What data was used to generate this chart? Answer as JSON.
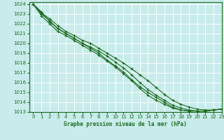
{
  "title": "Graphe pression niveau de la mer (hPa)",
  "bg_color": "#c8ecec",
  "grid_color": "#ffffff",
  "line_color": "#1a6b1a",
  "xlim": [
    -0.5,
    23
  ],
  "ylim": [
    1013,
    1024.2
  ],
  "xticks": [
    0,
    1,
    2,
    3,
    4,
    5,
    6,
    7,
    8,
    9,
    10,
    11,
    12,
    13,
    14,
    15,
    16,
    17,
    18,
    19,
    20,
    21,
    22,
    23
  ],
  "yticks": [
    1013,
    1014,
    1015,
    1016,
    1017,
    1018,
    1019,
    1020,
    1021,
    1022,
    1023,
    1024
  ],
  "series": [
    [
      1024.0,
      1023.1,
      1022.5,
      1021.8,
      1021.2,
      1020.8,
      1020.3,
      1020.0,
      1019.5,
      1019.0,
      1018.5,
      1018.0,
      1017.4,
      1016.8,
      1016.2,
      1015.5,
      1014.8,
      1014.2,
      1013.8,
      1013.5,
      1013.3,
      1013.2,
      1013.2,
      1013.3
    ],
    [
      1024.0,
      1023.0,
      1022.3,
      1021.5,
      1021.0,
      1020.5,
      1020.0,
      1019.5,
      1019.0,
      1018.3,
      1017.7,
      1017.1,
      1016.3,
      1015.6,
      1015.0,
      1014.5,
      1014.0,
      1013.5,
      1013.2,
      1013.1,
      1013.1,
      1013.1,
      1013.2,
      1013.3
    ],
    [
      1024.0,
      1023.2,
      1022.2,
      1021.5,
      1021.0,
      1020.5,
      1020.0,
      1019.6,
      1019.2,
      1018.7,
      1018.1,
      1017.5,
      1016.8,
      1016.0,
      1015.3,
      1014.7,
      1014.2,
      1013.7,
      1013.4,
      1013.2,
      1013.1,
      1013.1,
      1013.2,
      1013.3
    ],
    [
      1024.0,
      1022.8,
      1022.0,
      1021.2,
      1020.8,
      1020.3,
      1019.8,
      1019.3,
      1018.8,
      1018.2,
      1017.6,
      1016.9,
      1016.2,
      1015.4,
      1014.7,
      1014.2,
      1013.8,
      1013.4,
      1013.2,
      1013.1,
      1013.1,
      1013.1,
      1013.2,
      1013.3
    ]
  ]
}
